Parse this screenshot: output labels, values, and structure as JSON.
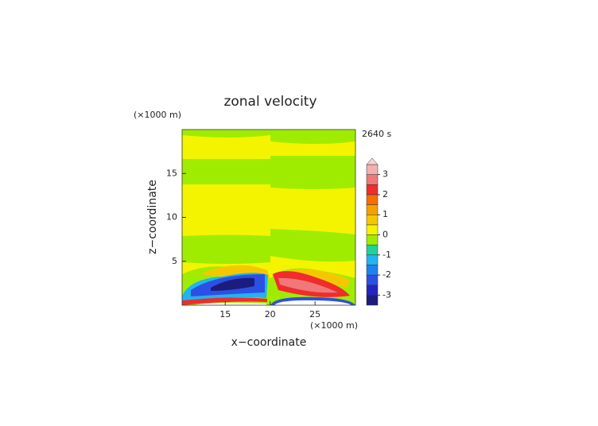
{
  "chart_data": {
    "type": "contour",
    "title": "zonal velocity",
    "time_label": "2640 s",
    "x_label": "x−coordinate",
    "y_label": "z−coordinate",
    "x_unit": "(×1000 m)",
    "y_unit": "(×1000 m)",
    "xlim": [
      10.2,
      29.5
    ],
    "xticks": [
      15,
      20,
      25
    ],
    "ylim": [
      0,
      20
    ],
    "yticks": [
      5,
      10,
      15
    ],
    "colorbar": {
      "levels": [
        -3.5,
        -3,
        -2.5,
        -2,
        -1.5,
        -1,
        -0.5,
        0,
        0.5,
        1,
        1.5,
        2,
        2.5,
        3,
        3.5
      ],
      "colors": [
        "#1c1c7c",
        "#2424c0",
        "#2c50e4",
        "#2080f0",
        "#20b4f0",
        "#20d0a0",
        "#a0ec00",
        "#f4f400",
        "#f4c800",
        "#f4a000",
        "#f47000",
        "#f02c2c",
        "#f07878",
        "#f4b0b0"
      ],
      "extend_color": "#f8d4d4",
      "ticks": [
        -3,
        -2,
        -1,
        0,
        1,
        2,
        3
      ]
    }
  }
}
